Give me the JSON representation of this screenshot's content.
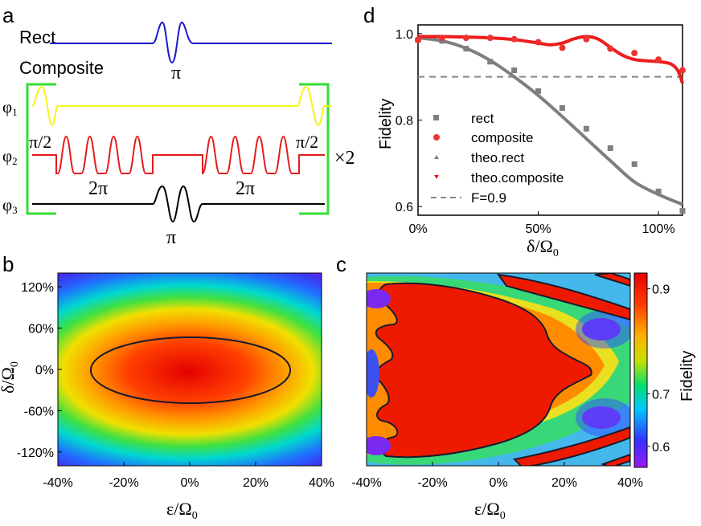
{
  "panel_letters": {
    "a": "a",
    "b": "b",
    "c": "c",
    "d": "d"
  },
  "panel_a": {
    "rect_label": "Rect",
    "composite_label": "Composite",
    "pi": "π",
    "two_pi": "2π",
    "half_pi": "π/2",
    "times_two": "×2",
    "phi_labels": [
      "φ₁",
      "φ₂",
      "φ₃"
    ],
    "colors": {
      "rect": "#1a1acc",
      "phi1": "#ffff33",
      "phi2": "#e51c1c",
      "phi3": "#000000",
      "bracket": "#33dd33"
    }
  },
  "colorbar": {
    "title": "Fidelity",
    "ticks": [
      "0.9",
      "0.7",
      "0.6"
    ],
    "tick_values": [
      0.9,
      0.7,
      0.6
    ],
    "range": [
      0.56,
      0.93
    ]
  },
  "chart_data": [
    {
      "panel": "b",
      "type": "heatmap",
      "xlabel": "ε/Ω₀",
      "ylabel": "δ/Ω₀",
      "x_ticks": [
        "-40%",
        "-20%",
        "0%",
        "20%",
        "40%"
      ],
      "y_ticks": [
        "120%",
        "60%",
        "0%",
        "-60%",
        "-120%"
      ],
      "x_range": [
        -40,
        40
      ],
      "y_range": [
        -140,
        140
      ],
      "contour_level": 0.9,
      "description_values": {
        "peak_fidelity": 0.93,
        "contour_eps_halfwidth": 30,
        "contour_delta_halfwidth": 45
      }
    },
    {
      "panel": "c",
      "type": "heatmap",
      "xlabel": "ε/Ω₀",
      "x_ticks": [
        "-40%",
        "-20%",
        "0%",
        "20%",
        "40%"
      ],
      "x_range": [
        -40,
        40
      ],
      "y_range": [
        -140,
        140
      ],
      "contour_level": 0.9
    },
    {
      "panel": "d",
      "type": "scatter",
      "xlabel": "δ/Ω₀",
      "ylabel": "Fidelity",
      "x_ticks": [
        "0%",
        "50%",
        "100%"
      ],
      "x_tick_values": [
        0,
        50,
        100
      ],
      "y_ticks": [
        "1.0",
        "0.8",
        "0.6"
      ],
      "y_tick_values": [
        1.0,
        0.8,
        0.6
      ],
      "xlim": [
        0,
        110
      ],
      "ylim": [
        0.58,
        1.02
      ],
      "threshold": 0.9,
      "legend": [
        "rect",
        "composite",
        "theo.rect",
        "theo.composite",
        "F=0.9"
      ],
      "series": [
        {
          "name": "rect",
          "kind": "points",
          "color": "#7f7f7f",
          "x": [
            0,
            10,
            20,
            30,
            40,
            50,
            60,
            70,
            80,
            90,
            100,
            110
          ],
          "y": [
            0.985,
            0.983,
            0.965,
            0.935,
            0.915,
            0.867,
            0.828,
            0.78,
            0.735,
            0.698,
            0.635,
            0.59
          ]
        },
        {
          "name": "composite",
          "kind": "points",
          "color": "#ee3333",
          "x": [
            0,
            10,
            20,
            30,
            40,
            50,
            60,
            70,
            80,
            90,
            100,
            110
          ],
          "y": [
            0.985,
            0.99,
            0.99,
            0.99,
            0.987,
            0.98,
            0.967,
            0.987,
            0.965,
            0.955,
            0.94,
            0.915
          ]
        },
        {
          "name": "theo.rect",
          "kind": "line",
          "color": "#7f7f7f",
          "x": [
            0,
            10,
            20,
            30,
            40,
            50,
            60,
            70,
            80,
            90,
            100,
            110
          ],
          "y": [
            0.99,
            0.983,
            0.966,
            0.938,
            0.9,
            0.857,
            0.808,
            0.757,
            0.706,
            0.657,
            0.628,
            0.605
          ]
        },
        {
          "name": "theo.composite",
          "kind": "line",
          "color": "#ee1c1c",
          "x": [
            0,
            10,
            20,
            30,
            40,
            50,
            55,
            60,
            65,
            70,
            75,
            80,
            85,
            90,
            95,
            100,
            105,
            108,
            110
          ],
          "y": [
            0.993,
            0.993,
            0.992,
            0.99,
            0.986,
            0.978,
            0.974,
            0.978,
            0.988,
            0.993,
            0.987,
            0.968,
            0.95,
            0.94,
            0.937,
            0.935,
            0.93,
            0.915,
            0.885
          ]
        }
      ]
    }
  ]
}
